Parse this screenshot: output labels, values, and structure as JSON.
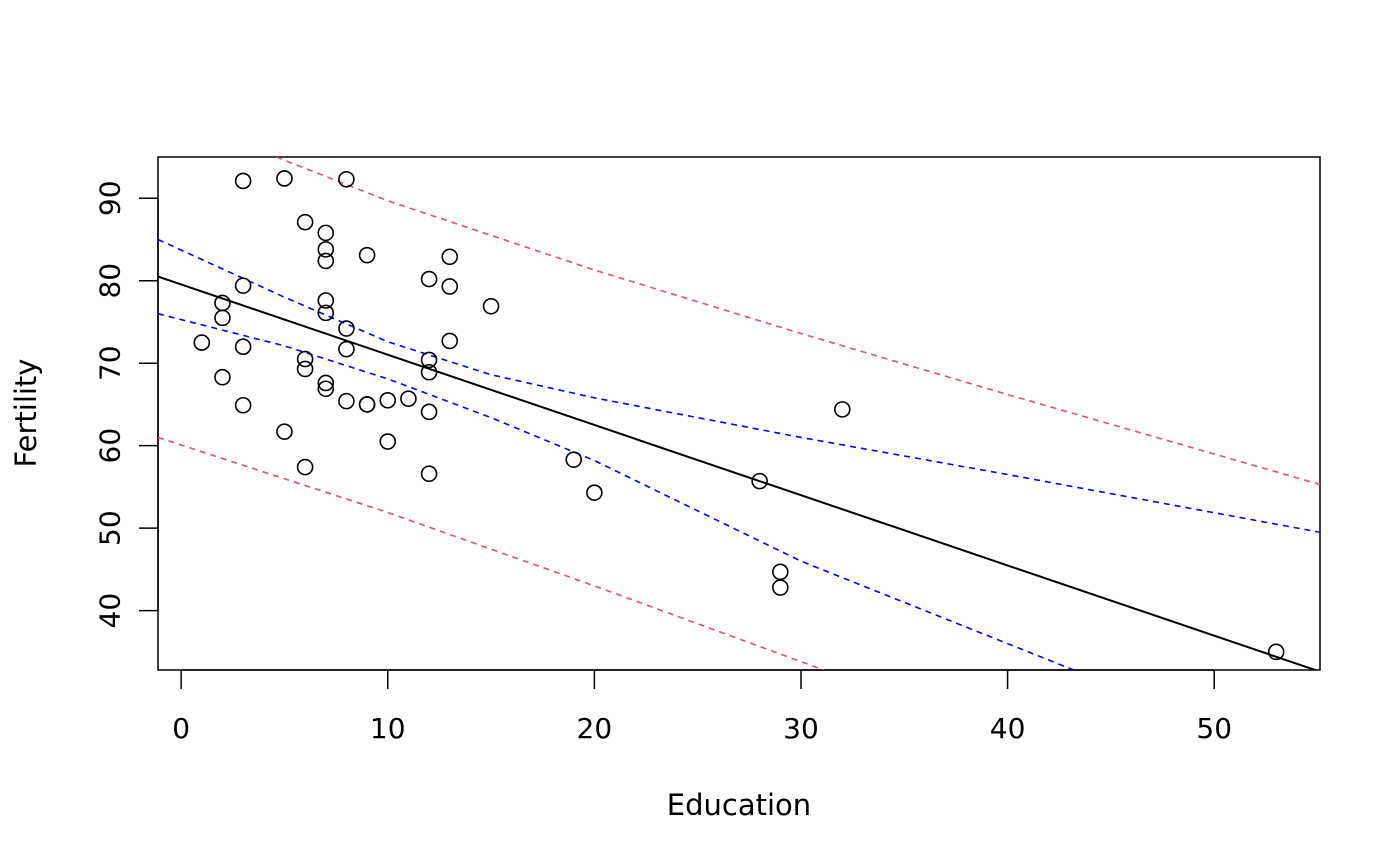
{
  "chart_data": {
    "type": "scatter",
    "title": "",
    "xlabel": "Education",
    "ylabel": "Fertility",
    "xlim": [
      -1.12,
      55.12
    ],
    "ylim": [
      32.8,
      95.0
    ],
    "x_ticks": [
      0,
      10,
      20,
      30,
      40,
      50
    ],
    "y_ticks": [
      40,
      50,
      60,
      70,
      80,
      90
    ],
    "grid": false,
    "legend": "none",
    "points": {
      "x": [
        3,
        5,
        8,
        6,
        7,
        7,
        7,
        9,
        13,
        12,
        13,
        3,
        2,
        2,
        15,
        7,
        7,
        8,
        13,
        8,
        1,
        3,
        6,
        12,
        6,
        12,
        2,
        7,
        7,
        8,
        9,
        9,
        11,
        10,
        12,
        3,
        5,
        10,
        6,
        12,
        19,
        20,
        28,
        29,
        29,
        32,
        53
      ],
      "y": [
        92.1,
        92.4,
        92.3,
        87.1,
        85.8,
        83.8,
        82.4,
        83.1,
        82.9,
        80.2,
        79.3,
        79.4,
        77.3,
        75.5,
        76.9,
        77.6,
        76.1,
        74.2,
        72.7,
        71.7,
        72.5,
        72.0,
        70.5,
        70.4,
        69.3,
        68.9,
        68.3,
        67.6,
        66.9,
        65.4,
        65.0,
        65.0,
        65.7,
        65.5,
        64.1,
        64.9,
        61.7,
        60.5,
        57.4,
        56.6,
        58.3,
        54.3,
        55.7,
        44.7,
        42.8,
        64.4,
        35.0
      ],
      "marker": "open-circle",
      "color": "#000000"
    },
    "lines": [
      {
        "role": "regression-fit",
        "style": "solid",
        "color": "#000000",
        "x": [
          -1.12,
          55.12
        ],
        "y": [
          80.5,
          32.6
        ]
      },
      {
        "role": "confidence-band-upper",
        "style": "dashed",
        "color": "#0000ff",
        "x": [
          -1.12,
          5,
          10,
          15,
          20,
          30,
          40,
          55.12
        ],
        "y": [
          85.0,
          78.0,
          72.6,
          68.6,
          65.8,
          61.0,
          56.5,
          49.5
        ]
      },
      {
        "role": "confidence-band-lower",
        "style": "dashed",
        "color": "#0000ff",
        "x": [
          -1.12,
          5,
          10,
          15,
          20,
          30,
          43.2
        ],
        "y": [
          76.0,
          72.1,
          68.1,
          63.4,
          58.2,
          46.0,
          32.8
        ]
      },
      {
        "role": "prediction-band-upper",
        "style": "dashed",
        "color": "#df536b",
        "x": [
          4.6,
          10,
          20,
          30,
          40,
          55.12
        ],
        "y": [
          95.0,
          89.7,
          81.3,
          73.6,
          66.2,
          55.3
        ]
      },
      {
        "role": "prediction-band-lower",
        "style": "dashed",
        "color": "#df536b",
        "x": [
          -1.12,
          10,
          20,
          31.1
        ],
        "y": [
          61.0,
          51.9,
          43.0,
          32.8
        ]
      }
    ]
  }
}
